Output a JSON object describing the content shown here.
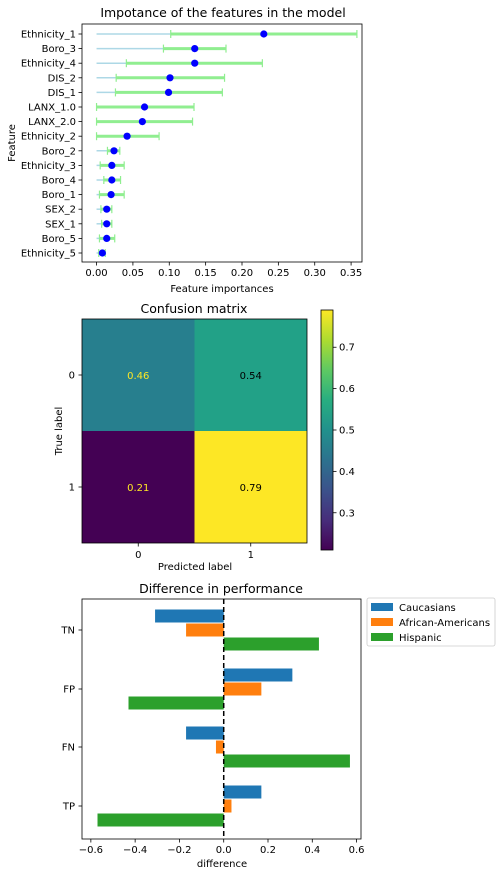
{
  "chart_data": [
    {
      "type": "scatter",
      "title": "Impotance of the features in the model",
      "xlabel": "Feature importances",
      "ylabel": "Feature",
      "xlim": [
        -0.02,
        0.365
      ],
      "xticks": [
        "0.00",
        "0.05",
        "0.10",
        "0.15",
        "0.20",
        "0.25",
        "0.30",
        "0.35"
      ],
      "xtick_values": [
        0,
        0.05,
        0.1,
        0.15,
        0.2,
        0.25,
        0.3,
        0.35
      ],
      "colors": {
        "point": "#0000ff",
        "std_bar": "#90ee90",
        "range_line": "#add8e6"
      },
      "features": [
        {
          "name": "Ethnicity_1",
          "mean": 0.23,
          "std_low": 0.102,
          "std_high": 0.358,
          "min": 0.0
        },
        {
          "name": "Boro_3",
          "mean": 0.135,
          "std_low": 0.092,
          "std_high": 0.178,
          "min": 0.0
        },
        {
          "name": "Ethnicity_4",
          "mean": 0.135,
          "std_low": 0.041,
          "std_high": 0.228,
          "min": 0.0
        },
        {
          "name": "DIS_2",
          "mean": 0.101,
          "std_low": 0.027,
          "std_high": 0.176,
          "min": 0.0
        },
        {
          "name": "DIS_1",
          "mean": 0.099,
          "std_low": 0.026,
          "std_high": 0.173,
          "min": 0.0
        },
        {
          "name": "LANX_1.0",
          "mean": 0.066,
          "std_low": 0.0,
          "std_high": 0.134,
          "min": 0.0
        },
        {
          "name": "LANX_2.0",
          "mean": 0.063,
          "std_low": 0.0,
          "std_high": 0.132,
          "min": 0.0
        },
        {
          "name": "Ethnicity_2",
          "mean": 0.042,
          "std_low": 0.0,
          "std_high": 0.086,
          "min": 0.0
        },
        {
          "name": "Boro_2",
          "mean": 0.024,
          "std_low": 0.015,
          "std_high": 0.032,
          "min": 0.0
        },
        {
          "name": "Ethnicity_3",
          "mean": 0.021,
          "std_low": 0.005,
          "std_high": 0.038,
          "min": 0.0
        },
        {
          "name": "Boro_4",
          "mean": 0.021,
          "std_low": 0.01,
          "std_high": 0.033,
          "min": 0.0
        },
        {
          "name": "Boro_1",
          "mean": 0.02,
          "std_low": 0.004,
          "std_high": 0.038,
          "min": 0.0
        },
        {
          "name": "SEX_2",
          "mean": 0.014,
          "std_low": 0.006,
          "std_high": 0.021,
          "min": 0.0
        },
        {
          "name": "SEX_1",
          "mean": 0.014,
          "std_low": 0.007,
          "std_high": 0.021,
          "min": 0.0
        },
        {
          "name": "Boro_5",
          "mean": 0.014,
          "std_low": 0.004,
          "std_high": 0.025,
          "min": 0.0
        },
        {
          "name": "Ethnicity_5",
          "mean": 0.008,
          "std_low": 0.003,
          "std_high": 0.012,
          "min": 0.0
        }
      ]
    },
    {
      "type": "heatmap",
      "title": "Confusion matrix",
      "xlabel": "Predicted label",
      "ylabel": "True label",
      "x_categories": [
        "0",
        "1"
      ],
      "y_categories": [
        "0",
        "1"
      ],
      "values": [
        [
          0.46,
          0.54
        ],
        [
          0.21,
          0.79
        ]
      ],
      "labels": [
        [
          "0.46",
          "0.54"
        ],
        [
          "0.21",
          "0.79"
        ]
      ],
      "colorbar": {
        "min": 0.21,
        "max": 0.79,
        "ticks": [
          "0.3",
          "0.4",
          "0.5",
          "0.6",
          "0.7"
        ],
        "tick_values": [
          0.3,
          0.4,
          0.5,
          0.6,
          0.7
        ]
      },
      "colormap": "viridis"
    },
    {
      "type": "bar",
      "orientation": "horizontal",
      "title": "Difference in performance",
      "xlabel": "difference",
      "ylabel": "",
      "categories": [
        "TN",
        "FP",
        "FN",
        "TP"
      ],
      "xlim": [
        -0.64,
        0.62
      ],
      "xticks": [
        "−0.6",
        "−0.4",
        "−0.2",
        "0.0",
        "0.2",
        "0.4",
        "0.6"
      ],
      "xtick_values": [
        -0.6,
        -0.4,
        -0.2,
        0,
        0.2,
        0.4,
        0.6
      ],
      "reference_line": 0,
      "legend_position": "outside-top-right",
      "series": [
        {
          "name": "Caucasians",
          "color": "#1f77b4",
          "values": [
            -0.31,
            0.31,
            -0.17,
            0.17
          ]
        },
        {
          "name": "African-Americans",
          "color": "#ff7f0e",
          "values": [
            -0.17,
            0.17,
            -0.035,
            0.035
          ]
        },
        {
          "name": "Hispanic",
          "color": "#2ca02c",
          "values": [
            0.43,
            -0.43,
            0.57,
            -0.57
          ]
        }
      ]
    }
  ]
}
